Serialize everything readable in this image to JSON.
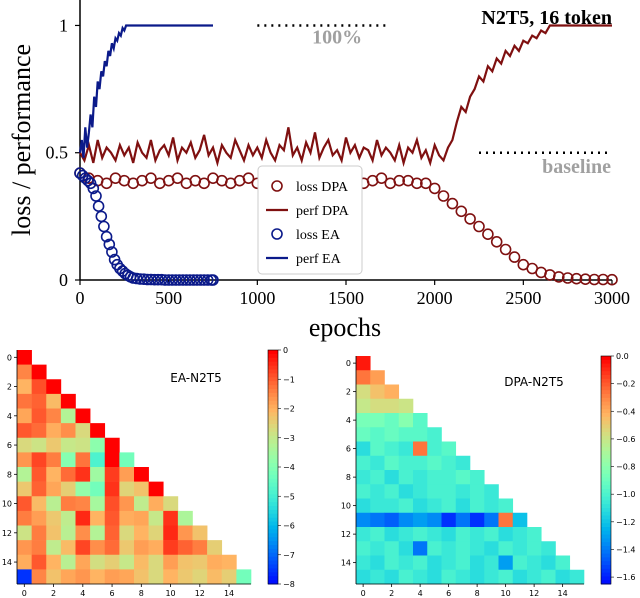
{
  "chart_data": [
    {
      "type": "line",
      "title": "N2T5, 16 token",
      "xlabel": "epochs",
      "ylabel": "loss /  performance",
      "xlim": [
        0,
        3000
      ],
      "ylim": [
        0,
        1.1
      ],
      "xticks": [
        0,
        500,
        1000,
        1500,
        2000,
        2500,
        3000
      ],
      "yticks": [
        0,
        0.5,
        1
      ],
      "ytick_labels": [
        "0",
        "0.5",
        "1"
      ],
      "grid": false,
      "legend_position": "center",
      "legend": [
        "loss DPA",
        "perf DPA",
        "loss EA",
        "perf EA"
      ],
      "annotations": [
        {
          "text": "100%",
          "x": 1450,
          "y": 0.93,
          "line_x": [
            1000,
            1750
          ],
          "line_y": 1.0
        },
        {
          "text": "baseline",
          "x": 2800,
          "y": 0.42,
          "line_x": [
            2250,
            3000
          ],
          "line_y": 0.5
        }
      ],
      "series": [
        {
          "name": "loss DPA",
          "style": "circle-markers",
          "color": "#7f1010",
          "x": [
            0,
            50,
            100,
            150,
            200,
            250,
            300,
            350,
            400,
            450,
            500,
            550,
            600,
            650,
            700,
            750,
            800,
            850,
            900,
            950,
            1000,
            1050,
            1100,
            1150,
            1200,
            1250,
            1300,
            1350,
            1400,
            1450,
            1500,
            1550,
            1600,
            1650,
            1700,
            1750,
            1800,
            1850,
            1900,
            1950,
            2000,
            2050,
            2100,
            2150,
            2200,
            2250,
            2300,
            2350,
            2400,
            2450,
            2500,
            2550,
            2600,
            2650,
            2700,
            2750,
            2800,
            2850,
            2900,
            2950,
            3000
          ],
          "y": [
            0.42,
            0.4,
            0.39,
            0.38,
            0.4,
            0.39,
            0.38,
            0.39,
            0.4,
            0.38,
            0.39,
            0.4,
            0.38,
            0.39,
            0.38,
            0.4,
            0.39,
            0.38,
            0.39,
            0.4,
            0.38,
            0.39,
            0.38,
            0.39,
            0.4,
            0.38,
            0.39,
            0.39,
            0.38,
            0.4,
            0.38,
            0.39,
            0.38,
            0.39,
            0.4,
            0.38,
            0.39,
            0.39,
            0.38,
            0.38,
            0.36,
            0.33,
            0.3,
            0.27,
            0.24,
            0.21,
            0.18,
            0.15,
            0.12,
            0.09,
            0.06,
            0.045,
            0.03,
            0.02,
            0.012,
            0.008,
            0.005,
            0.003,
            0.002,
            0.002,
            0.001
          ]
        },
        {
          "name": "perf DPA",
          "style": "line",
          "color": "#7f1010",
          "x": [
            0,
            25,
            50,
            75,
            100,
            125,
            150,
            175,
            200,
            225,
            250,
            275,
            300,
            325,
            350,
            375,
            400,
            425,
            450,
            475,
            500,
            525,
            550,
            575,
            600,
            625,
            650,
            675,
            700,
            725,
            750,
            775,
            800,
            825,
            850,
            875,
            900,
            925,
            950,
            975,
            1000,
            1025,
            1050,
            1075,
            1100,
            1125,
            1150,
            1175,
            1200,
            1225,
            1250,
            1275,
            1300,
            1325,
            1350,
            1375,
            1400,
            1425,
            1450,
            1475,
            1500,
            1525,
            1550,
            1575,
            1600,
            1625,
            1650,
            1675,
            1700,
            1725,
            1750,
            1775,
            1800,
            1825,
            1850,
            1875,
            1900,
            1925,
            1950,
            1975,
            2000,
            2025,
            2050,
            2075,
            2100,
            2125,
            2150,
            2175,
            2200,
            2225,
            2250,
            2275,
            2300,
            2325,
            2350,
            2375,
            2400,
            2425,
            2450,
            2475,
            2500,
            2525,
            2550,
            2575,
            2600,
            2625,
            2650,
            2700,
            2750,
            2800,
            2850,
            2900,
            2950,
            3000
          ],
          "y": [
            0.5,
            0.47,
            0.53,
            0.46,
            0.55,
            0.48,
            0.52,
            0.5,
            0.47,
            0.53,
            0.49,
            0.52,
            0.46,
            0.54,
            0.5,
            0.48,
            0.55,
            0.47,
            0.51,
            0.53,
            0.49,
            0.56,
            0.47,
            0.52,
            0.5,
            0.54,
            0.48,
            0.51,
            0.57,
            0.49,
            0.52,
            0.46,
            0.53,
            0.5,
            0.48,
            0.55,
            0.51,
            0.47,
            0.53,
            0.49,
            0.52,
            0.48,
            0.55,
            0.5,
            0.47,
            0.53,
            0.51,
            0.6,
            0.49,
            0.52,
            0.47,
            0.54,
            0.5,
            0.58,
            0.48,
            0.52,
            0.55,
            0.49,
            0.51,
            0.47,
            0.56,
            0.5,
            0.53,
            0.48,
            0.52,
            0.51,
            0.47,
            0.55,
            0.49,
            0.52,
            0.5,
            0.47,
            0.53,
            0.46,
            0.52,
            0.5,
            0.55,
            0.48,
            0.51,
            0.46,
            0.53,
            0.49,
            0.47,
            0.52,
            0.55,
            0.62,
            0.68,
            0.66,
            0.72,
            0.75,
            0.8,
            0.78,
            0.84,
            0.82,
            0.87,
            0.85,
            0.9,
            0.88,
            0.92,
            0.9,
            0.94,
            0.93,
            0.96,
            0.95,
            0.98,
            0.97,
            1.0,
            1.0,
            1.0,
            1.0,
            1.0,
            1.0,
            1.0,
            1.0
          ]
        },
        {
          "name": "loss EA",
          "style": "circle-markers",
          "color": "#0b1a8a",
          "x": [
            0,
            15,
            30,
            45,
            60,
            75,
            90,
            105,
            120,
            135,
            150,
            165,
            180,
            195,
            210,
            225,
            240,
            255,
            270,
            285,
            300,
            320,
            340,
            360,
            380,
            400,
            420,
            440,
            460,
            480,
            500,
            520,
            540,
            560,
            580,
            600,
            620,
            640,
            660,
            680,
            700,
            720,
            740,
            750
          ],
          "y": [
            0.42,
            0.41,
            0.4,
            0.39,
            0.38,
            0.36,
            0.33,
            0.29,
            0.25,
            0.21,
            0.17,
            0.14,
            0.11,
            0.08,
            0.06,
            0.045,
            0.035,
            0.025,
            0.018,
            0.012,
            0.008,
            0.006,
            0.004,
            0.003,
            0.002,
            0.002,
            0.001,
            0.001,
            0.001,
            0.0,
            0.0,
            0.0,
            0.0,
            0.0,
            0.0,
            0.0,
            0.0,
            0.0,
            0.0,
            0.0,
            0.0,
            0.0,
            0.0,
            0.0
          ]
        },
        {
          "name": "perf EA",
          "style": "line",
          "color": "#0b1a8a",
          "x": [
            0,
            10,
            20,
            30,
            40,
            50,
            60,
            70,
            80,
            90,
            100,
            110,
            120,
            130,
            140,
            150,
            160,
            170,
            180,
            190,
            200,
            210,
            220,
            230,
            240,
            250,
            260,
            270,
            280,
            300,
            400,
            500,
            600,
            700,
            750
          ],
          "y": [
            0.5,
            0.55,
            0.48,
            0.6,
            0.52,
            0.58,
            0.65,
            0.6,
            0.72,
            0.68,
            0.78,
            0.75,
            0.82,
            0.8,
            0.86,
            0.84,
            0.9,
            0.88,
            0.93,
            0.91,
            0.95,
            0.94,
            0.97,
            0.96,
            0.99,
            0.98,
            1.0,
            1.0,
            1.0,
            1.0,
            1.0,
            1.0,
            1.0,
            1.0,
            1.0
          ]
        }
      ]
    },
    {
      "type": "heatmap",
      "title": "EA-N2T5",
      "colormap": "rainbow",
      "vmin": -8,
      "vmax": 0,
      "xticks": [
        0,
        2,
        4,
        6,
        8,
        10,
        12,
        14
      ],
      "yticks": [
        0,
        2,
        4,
        6,
        8,
        10,
        12,
        14
      ],
      "colorbar_ticks": [
        0,
        -1,
        -2,
        -3,
        -4,
        -5,
        -6,
        -7,
        -8
      ],
      "colorbar_tick_labels": [
        "0",
        "−1",
        "−2",
        "−3",
        "−4",
        "−5",
        "−6",
        "−7",
        "−8"
      ],
      "triangle": "lower",
      "matrix": [
        [
          0
        ],
        [
          -1.4,
          0
        ],
        [
          -2.0,
          -0.8,
          0
        ],
        [
          -1.2,
          -1.0,
          -2.1,
          0
        ],
        [
          -1.8,
          -0.9,
          -1.4,
          -3.2,
          0
        ],
        [
          -0.9,
          -1.1,
          -1.9,
          -1.5,
          -2.6,
          0
        ],
        [
          -2.6,
          -2.8,
          -2.3,
          -2.9,
          -2.8,
          -3.8,
          0
        ],
        [
          -1.6,
          -0.7,
          -1.3,
          -3.9,
          -1.2,
          -4.8,
          0,
          -4.2
        ],
        [
          -3.2,
          -0.9,
          -2.0,
          -1.1,
          -0.5,
          -3.5,
          -0.6,
          -1.7,
          0
        ],
        [
          -2.3,
          -1.0,
          -1.8,
          -2.4,
          -3.7,
          -4.2,
          -0.5,
          -2.5,
          -2.2,
          0
        ],
        [
          -0.9,
          -2.1,
          -3.1,
          -1.3,
          -1.4,
          -3.4,
          -0.8,
          -1.6,
          -3.0,
          -1.9,
          -2.6
        ],
        [
          -1.3,
          -1.7,
          -2.3,
          -3.0,
          -0.4,
          -2.0,
          -0.9,
          -1.9,
          -1.8,
          -2.9,
          -0.5,
          -3.3
        ],
        [
          -2.8,
          -1.3,
          -2.2,
          -3.1,
          -1.5,
          -3.2,
          -1.0,
          -2.6,
          -2.0,
          -2.5,
          -0.4,
          -1.6,
          -2.2
        ],
        [
          -1.6,
          -1.3,
          -3.0,
          -2.1,
          -0.7,
          -1.5,
          -1.1,
          -2.3,
          -1.7,
          -1.9,
          -0.6,
          -1.0,
          -1.3,
          -2.4
        ],
        [
          -1.9,
          -0.9,
          -2.0,
          -3.1,
          -1.8,
          -2.7,
          -2.4,
          -2.9,
          -2.1,
          -2.6,
          -1.7,
          -2.2,
          -2.3,
          -1.9,
          -2.0
        ],
        [
          -7.5,
          -1.4,
          -2.2,
          -1.8,
          -1.6,
          -2.0,
          -1.7,
          -1.8,
          -2.2,
          -2.6,
          -2.0,
          -2.3,
          -2.5,
          -2.1,
          -2.4,
          -4.2
        ]
      ]
    },
    {
      "type": "heatmap",
      "title": "DPA-N2T5",
      "colormap": "rainbow",
      "vmin": -1.65,
      "vmax": 0,
      "xticks": [
        0,
        2,
        4,
        6,
        8,
        10,
        12,
        14
      ],
      "yticks": [
        0,
        2,
        4,
        6,
        8,
        10,
        12,
        14
      ],
      "colorbar_ticks": [
        0,
        -0.2,
        -0.4,
        -0.6,
        -0.8,
        -1.0,
        -1.2,
        -1.4,
        -1.6
      ],
      "colorbar_tick_labels": [
        "0.0",
        "−0.2",
        "−0.4",
        "−0.6",
        "−0.8",
        "−1.0",
        "−1.2",
        "−1.4",
        "−1.6"
      ],
      "triangle": "lower",
      "matrix": [
        [
          -0.05
        ],
        [
          -0.25,
          -0.35
        ],
        [
          -0.55,
          -0.45,
          -0.4
        ],
        [
          -0.6,
          -0.55,
          -0.55,
          -0.58
        ],
        [
          -0.85,
          -0.85,
          -0.9,
          -0.8,
          -0.95
        ],
        [
          -0.9,
          -0.95,
          -0.9,
          -0.95,
          -0.95,
          -1.0
        ],
        [
          -1.1,
          -0.95,
          -1.0,
          -1.05,
          -0.25,
          -1.0,
          -0.95
        ],
        [
          -1.0,
          -1.05,
          -0.95,
          -1.0,
          -1.0,
          -0.95,
          -1.0,
          -1.05
        ],
        [
          -1.05,
          -1.0,
          -1.1,
          -1.0,
          -1.05,
          -1.0,
          -1.0,
          -0.95,
          -1.0
        ],
        [
          -1.0,
          -1.05,
          -1.0,
          -1.1,
          -1.05,
          -1.0,
          -1.0,
          -1.05,
          -1.0,
          -1.05
        ],
        [
          -1.1,
          -1.05,
          -1.05,
          -1.0,
          -1.1,
          -1.05,
          -1.0,
          -1.1,
          -1.0,
          -1.05,
          -1.0
        ],
        [
          -1.35,
          -1.4,
          -1.45,
          -1.35,
          -1.3,
          -1.35,
          -1.55,
          -1.4,
          -1.55,
          -1.4,
          -0.25,
          -1.2
        ],
        [
          -1.05,
          -1.0,
          -1.1,
          -1.05,
          -1.0,
          -1.05,
          -1.1,
          -1.0,
          -1.05,
          -1.0,
          -1.1,
          -1.05,
          -1.0
        ],
        [
          -1.0,
          -1.05,
          -1.0,
          -1.1,
          -1.4,
          -1.0,
          -1.05,
          -1.0,
          -1.05,
          -1.1,
          -1.0,
          -1.05,
          -1.0,
          -1.05
        ],
        [
          -1.05,
          -1.1,
          -1.0,
          -1.05,
          -1.0,
          -1.1,
          -1.05,
          -1.0,
          -1.1,
          -1.05,
          -1.3,
          -1.0,
          -1.05,
          -1.1,
          -1.0
        ],
        [
          -1.1,
          -1.05,
          -1.1,
          -1.0,
          -1.05,
          -1.1,
          -1.0,
          -1.05,
          -1.1,
          -1.05,
          -1.0,
          -1.1,
          -1.05,
          -1.0,
          -1.1,
          -1.05
        ]
      ]
    }
  ]
}
